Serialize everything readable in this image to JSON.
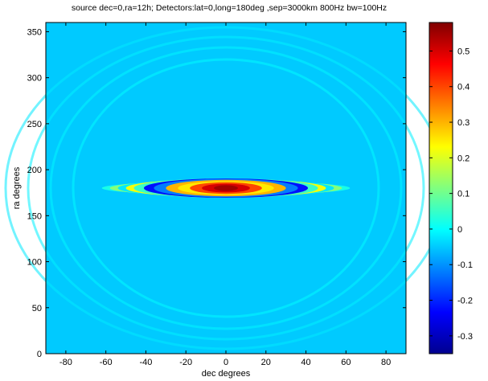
{
  "chart_data": {
    "type": "heatmap",
    "title": "source dec=0,ra=12h; Detectors:lat=0,long=180deg ,sep=3000km 800Hz bw=100Hz",
    "xlabel": "dec degrees",
    "ylabel": "ra degrees",
    "xlim": [
      -90,
      90
    ],
    "ylim": [
      0,
      360
    ],
    "xticks": [
      -80,
      -60,
      -40,
      -20,
      0,
      20,
      40,
      60,
      80
    ],
    "yticks": [
      0,
      50,
      100,
      150,
      200,
      250,
      300,
      350
    ],
    "colorbar": {
      "limits": [
        -0.35,
        0.58
      ],
      "ticks": [
        -0.3,
        -0.2,
        -0.1,
        0,
        0.1,
        0.2,
        0.3,
        0.4,
        0.5
      ],
      "colormap": "jet"
    },
    "background_value": -0.05,
    "peak": {
      "dec": 0,
      "ra": 180,
      "value": 0.55
    },
    "colormap_stops": [
      "#00008f",
      "#0000ff",
      "#00ffff",
      "#ffff00",
      "#ff0000",
      "#800000"
    ]
  }
}
